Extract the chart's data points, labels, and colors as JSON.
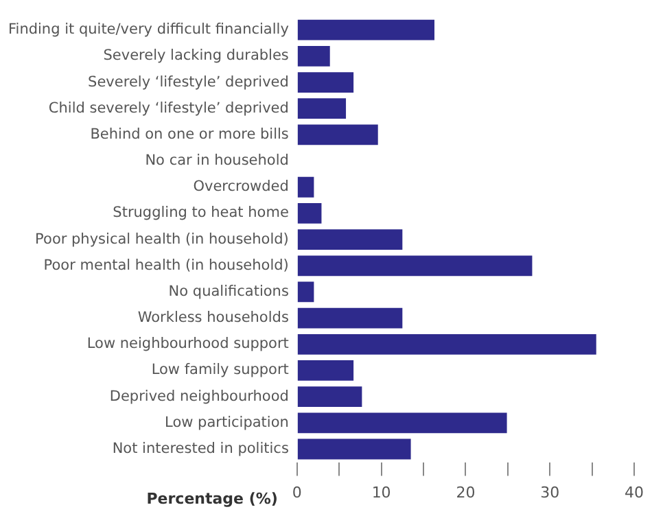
{
  "chart_data": {
    "type": "bar",
    "orientation": "horizontal",
    "xlabel": "Percentage (%)",
    "categories": [
      "Finding it quite/very difficult financially",
      "Severely lacking durables",
      "Severely ‘lifestyle’ deprived",
      "Child severely ‘lifestyle’ deprived",
      "Behind on one or more bills",
      "No car in household",
      "Overcrowded",
      "Struggling to heat home",
      "Poor physical health (in household)",
      "Poor mental health (in household)",
      "No qualifications",
      "Workless households",
      "Low neighbourhood support",
      "Low family support",
      "Deprived neighbourhood",
      "Low participation",
      "Not interested in politics"
    ],
    "values": [
      16.3,
      3.9,
      6.7,
      5.8,
      9.6,
      0,
      2.0,
      2.9,
      12.5,
      27.9,
      2.0,
      12.5,
      35.5,
      6.7,
      7.7,
      24.9,
      13.5
    ],
    "color": "#2e2a8c",
    "xlim": [
      0,
      40
    ],
    "xticks": [
      0,
      {
        "value": 5,
        "label": null
      },
      10,
      {
        "value": 15,
        "label": null
      },
      20,
      {
        "value": 25,
        "label": null
      },
      30,
      {
        "value": 35,
        "label": null
      },
      40
    ],
    "grid": false,
    "legend": false
  }
}
